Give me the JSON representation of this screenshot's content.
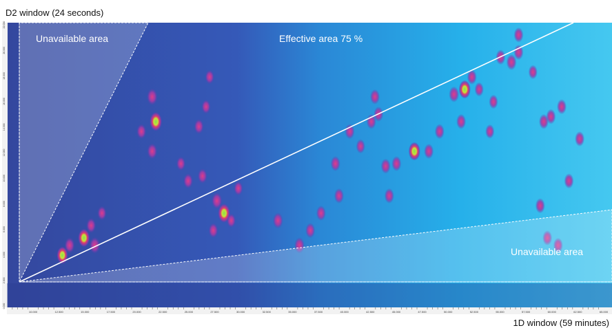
{
  "chart_data": {
    "type": "heatmap",
    "title": "",
    "ylabel": "D2 window (24 seconds)",
    "xlabel": "1D window (59 minutes)",
    "annotations": {
      "unavailable_top": "Unavailable area",
      "effective": "Effective area 75 %",
      "unavailable_bottom": "Unavailable area"
    },
    "x_ticks": [
      "10.000",
      "12.500",
      "15.000",
      "17.500",
      "20.000",
      "22.500",
      "25.000",
      "27.500",
      "30.000",
      "32.500",
      "35.000",
      "37.500",
      "40.000",
      "42.500",
      "45.000",
      "47.500",
      "50.000",
      "52.500",
      "55.000",
      "57.500",
      "60.000",
      "62.500",
      "65.000"
    ],
    "y_ticks": [
      "0.000",
      "2.000",
      "4.000",
      "6.000",
      "8.000",
      "10.000",
      "12.000",
      "14.000",
      "16.000",
      "18.000",
      "20.000",
      "22.000"
    ],
    "peaks": [
      {
        "x": 0.22,
        "y": 0.08,
        "i": 0.8
      },
      {
        "x": 0.24,
        "y": 0.12,
        "i": 0.6
      },
      {
        "x": 0.28,
        "y": 0.15,
        "i": 0.9
      },
      {
        "x": 0.31,
        "y": 0.12,
        "i": 0.7
      },
      {
        "x": 0.3,
        "y": 0.2,
        "i": 0.5
      },
      {
        "x": 0.33,
        "y": 0.25,
        "i": 0.4
      },
      {
        "x": 0.47,
        "y": 0.5,
        "i": 0.6
      },
      {
        "x": 0.48,
        "y": 0.62,
        "i": 1.0
      },
      {
        "x": 0.47,
        "y": 0.72,
        "i": 0.7
      },
      {
        "x": 0.44,
        "y": 0.58,
        "i": 0.5
      },
      {
        "x": 0.6,
        "y": 0.6,
        "i": 0.5
      },
      {
        "x": 0.55,
        "y": 0.45,
        "i": 0.4
      },
      {
        "x": 0.57,
        "y": 0.38,
        "i": 0.5
      },
      {
        "x": 0.61,
        "y": 0.4,
        "i": 0.5
      },
      {
        "x": 0.62,
        "y": 0.68,
        "i": 0.4
      },
      {
        "x": 0.63,
        "y": 0.8,
        "i": 0.4
      },
      {
        "x": 0.65,
        "y": 0.3,
        "i": 0.7
      },
      {
        "x": 0.67,
        "y": 0.25,
        "i": 1.0
      },
      {
        "x": 0.64,
        "y": 0.18,
        "i": 0.5
      },
      {
        "x": 0.69,
        "y": 0.22,
        "i": 0.4
      },
      {
        "x": 0.71,
        "y": 0.35,
        "i": 0.4
      },
      {
        "x": 0.82,
        "y": 0.22,
        "i": 0.6
      },
      {
        "x": 0.88,
        "y": 0.12,
        "i": 0.6
      },
      {
        "x": 0.91,
        "y": 0.18,
        "i": 0.5
      },
      {
        "x": 0.94,
        "y": 0.25,
        "i": 0.5
      },
      {
        "x": 0.99,
        "y": 0.32,
        "i": 0.5
      },
      {
        "x": 0.98,
        "y": 0.45,
        "i": 0.5
      },
      {
        "x": 1.05,
        "y": 0.52,
        "i": 0.4
      },
      {
        "x": 1.02,
        "y": 0.58,
        "i": 0.5
      },
      {
        "x": 1.08,
        "y": 0.62,
        "i": 0.5
      },
      {
        "x": 1.12,
        "y": 0.44,
        "i": 0.5
      },
      {
        "x": 1.13,
        "y": 0.32,
        "i": 0.5
      },
      {
        "x": 1.1,
        "y": 0.65,
        "i": 0.5
      },
      {
        "x": 1.09,
        "y": 0.72,
        "i": 0.5
      },
      {
        "x": 1.15,
        "y": 0.45,
        "i": 0.5
      },
      {
        "x": 1.2,
        "y": 0.5,
        "i": 0.9
      },
      {
        "x": 1.24,
        "y": 0.5,
        "i": 0.5
      },
      {
        "x": 1.27,
        "y": 0.58,
        "i": 0.5
      },
      {
        "x": 1.33,
        "y": 0.62,
        "i": 0.5
      },
      {
        "x": 1.34,
        "y": 0.75,
        "i": 0.9
      },
      {
        "x": 1.31,
        "y": 0.73,
        "i": 0.6
      },
      {
        "x": 1.36,
        "y": 0.8,
        "i": 0.5
      },
      {
        "x": 1.38,
        "y": 0.75,
        "i": 0.4
      },
      {
        "x": 1.42,
        "y": 0.7,
        "i": 0.4
      },
      {
        "x": 1.41,
        "y": 0.58,
        "i": 0.4
      },
      {
        "x": 1.44,
        "y": 0.88,
        "i": 0.5
      },
      {
        "x": 1.47,
        "y": 0.86,
        "i": 0.6
      },
      {
        "x": 1.49,
        "y": 0.9,
        "i": 0.5
      },
      {
        "x": 1.49,
        "y": 0.97,
        "i": 0.5
      },
      {
        "x": 1.53,
        "y": 0.82,
        "i": 0.4
      },
      {
        "x": 1.56,
        "y": 0.62,
        "i": 0.5
      },
      {
        "x": 1.58,
        "y": 0.64,
        "i": 0.5
      },
      {
        "x": 1.61,
        "y": 0.68,
        "i": 0.5
      },
      {
        "x": 1.55,
        "y": 0.28,
        "i": 0.5
      },
      {
        "x": 1.57,
        "y": 0.15,
        "i": 0.5
      },
      {
        "x": 1.6,
        "y": 0.12,
        "i": 0.5
      },
      {
        "x": 1.63,
        "y": 0.38,
        "i": 0.5
      },
      {
        "x": 1.66,
        "y": 0.55,
        "i": 0.5
      }
    ]
  }
}
